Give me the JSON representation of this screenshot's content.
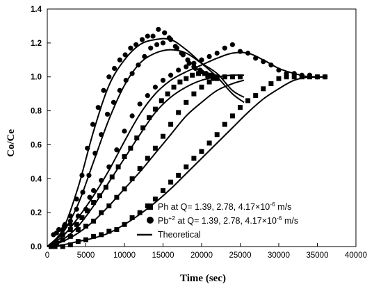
{
  "chart_data": {
    "type": "scatter",
    "xlabel": "Time (sec)",
    "ylabel": "Co/Ce",
    "xlim": [
      0,
      40000
    ],
    "ylim": [
      0,
      1.4
    ],
    "x_ticks": [
      "0",
      "5000",
      "10000",
      "15000",
      "20000",
      "25000",
      "30000",
      "35000",
      "40000"
    ],
    "y_ticks": [
      "0.0",
      "0.2",
      "0.4",
      "0.6",
      "0.8",
      "1.0",
      "1.2",
      "1.4"
    ],
    "grid": false,
    "legend_position": "bottom-right",
    "legend": [
      {
        "marker": "square",
        "base": "Ph at Q= 1.39, 2.78, 4.17×10",
        "sup": "-6",
        "tail": " m/s"
      },
      {
        "marker": "circle",
        "base": "Pb",
        "sup1": "+2",
        "mid": " at Q= 1.39, 2.78, 4.17×10",
        "sup": "-6",
        "tail": " m/s"
      },
      {
        "marker": "line",
        "text": "Theoretical"
      }
    ],
    "series": [
      {
        "marker": "circle",
        "points": [
          [
            800,
            0.07
          ],
          [
            1500,
            0.1
          ],
          [
            2300,
            0.13
          ],
          [
            3000,
            0.18
          ],
          [
            3800,
            0.28
          ],
          [
            4500,
            0.42
          ],
          [
            5200,
            0.58
          ],
          [
            5900,
            0.72
          ],
          [
            6600,
            0.82
          ],
          [
            7300,
            0.92
          ],
          [
            8000,
            1.0
          ],
          [
            8700,
            1.05
          ],
          [
            9400,
            1.1
          ],
          [
            10100,
            1.13
          ],
          [
            10800,
            1.17
          ],
          [
            11500,
            1.19
          ],
          [
            12300,
            1.22
          ],
          [
            13000,
            1.24
          ],
          [
            13700,
            1.24
          ],
          [
            14400,
            1.28
          ],
          [
            15200,
            1.26
          ],
          [
            16000,
            1.22
          ],
          [
            16800,
            1.17
          ],
          [
            17600,
            1.13
          ],
          [
            18400,
            1.08
          ],
          [
            19200,
            1.05
          ],
          [
            20000,
            1.03
          ],
          [
            20800,
            1.0
          ],
          [
            21500,
            0.99
          ]
        ]
      },
      {
        "marker": "circle",
        "points": [
          [
            1500,
            0.1
          ],
          [
            2200,
            0.12
          ],
          [
            3000,
            0.15
          ],
          [
            3800,
            0.22
          ],
          [
            4600,
            0.32
          ],
          [
            5400,
            0.42
          ],
          [
            6200,
            0.55
          ],
          [
            7000,
            0.66
          ],
          [
            7800,
            0.78
          ],
          [
            8600,
            0.85
          ],
          [
            9400,
            0.92
          ],
          [
            10200,
            0.98
          ],
          [
            11000,
            1.02
          ],
          [
            11800,
            1.07
          ],
          [
            12600,
            1.12
          ],
          [
            13400,
            1.17
          ],
          [
            14200,
            1.19
          ],
          [
            15000,
            1.2
          ],
          [
            15800,
            1.23
          ],
          [
            16600,
            1.18
          ],
          [
            17400,
            1.14
          ],
          [
            18200,
            1.1
          ],
          [
            19000,
            1.06
          ],
          [
            19800,
            1.04
          ],
          [
            20600,
            1.02
          ],
          [
            21400,
            1.01
          ]
        ]
      },
      {
        "marker": "circle",
        "points": [
          [
            1200,
            0.08
          ],
          [
            2000,
            0.1
          ],
          [
            3000,
            0.13
          ],
          [
            4000,
            0.18
          ],
          [
            5000,
            0.22
          ],
          [
            5500,
            0.29
          ],
          [
            6000,
            0.33
          ],
          [
            7000,
            0.39
          ],
          [
            8000,
            0.47
          ],
          [
            9000,
            0.57
          ],
          [
            10000,
            0.68
          ],
          [
            11000,
            0.77
          ],
          [
            12000,
            0.84
          ],
          [
            13000,
            0.89
          ],
          [
            14000,
            0.94
          ],
          [
            15000,
            0.98
          ],
          [
            16000,
            1.01
          ],
          [
            17000,
            1.04
          ],
          [
            18000,
            1.06
          ],
          [
            19000,
            1.08
          ],
          [
            20000,
            1.1
          ],
          [
            21000,
            1.12
          ],
          [
            22000,
            1.14
          ],
          [
            23000,
            1.17
          ],
          [
            24000,
            1.19
          ],
          [
            25000,
            1.15
          ],
          [
            26000,
            1.14
          ],
          [
            27000,
            1.11
          ],
          [
            28000,
            1.09
          ],
          [
            29000,
            1.07
          ],
          [
            30000,
            1.04
          ],
          [
            31000,
            1.02
          ],
          [
            32000,
            1.02
          ],
          [
            33000,
            1.01
          ],
          [
            34000,
            1.01
          ],
          [
            35000,
            1.0
          ],
          [
            36000,
            1.0
          ]
        ]
      },
      {
        "marker": "square",
        "points": [
          [
            500,
            0.0
          ],
          [
            1200,
            0.02
          ],
          [
            2000,
            0.07
          ],
          [
            3000,
            0.1
          ],
          [
            3800,
            0.13
          ],
          [
            4500,
            0.17
          ],
          [
            5200,
            0.21
          ],
          [
            6000,
            0.26
          ],
          [
            6800,
            0.3
          ],
          [
            7600,
            0.35
          ],
          [
            8400,
            0.41
          ],
          [
            9200,
            0.47
          ],
          [
            10000,
            0.53
          ],
          [
            10800,
            0.58
          ],
          [
            11600,
            0.64
          ],
          [
            12400,
            0.7
          ],
          [
            13200,
            0.76
          ],
          [
            14000,
            0.81
          ],
          [
            14800,
            0.86
          ],
          [
            15600,
            0.9
          ],
          [
            16400,
            0.94
          ],
          [
            17200,
            0.97
          ],
          [
            18000,
            0.99
          ],
          [
            18800,
            1.01
          ],
          [
            19600,
            1.02
          ],
          [
            20400,
            1.02
          ],
          [
            21200,
            1.01
          ],
          [
            22000,
            1.0
          ]
        ]
      },
      {
        "marker": "square",
        "points": [
          [
            1000,
            0.01
          ],
          [
            2000,
            0.04
          ],
          [
            3000,
            0.06
          ],
          [
            4000,
            0.1
          ],
          [
            5000,
            0.12
          ],
          [
            6000,
            0.15
          ],
          [
            7000,
            0.2
          ],
          [
            8000,
            0.24
          ],
          [
            9000,
            0.29
          ],
          [
            10000,
            0.34
          ],
          [
            11000,
            0.4
          ],
          [
            12000,
            0.46
          ],
          [
            13000,
            0.52
          ],
          [
            14000,
            0.58
          ],
          [
            15000,
            0.65
          ],
          [
            16000,
            0.72
          ],
          [
            17000,
            0.79
          ],
          [
            18000,
            0.85
          ],
          [
            19000,
            0.9
          ],
          [
            20000,
            0.94
          ],
          [
            21000,
            0.97
          ],
          [
            22000,
            0.99
          ],
          [
            23000,
            1.0
          ],
          [
            24000,
            1.0
          ],
          [
            25000,
            1.0
          ]
        ]
      },
      {
        "marker": "square",
        "points": [
          [
            1000,
            0.0
          ],
          [
            2000,
            0.0
          ],
          [
            3000,
            0.01
          ],
          [
            4000,
            0.03
          ],
          [
            5000,
            0.04
          ],
          [
            6000,
            0.06
          ],
          [
            7000,
            0.07
          ],
          [
            8000,
            0.09
          ],
          [
            9000,
            0.1
          ],
          [
            10000,
            0.13
          ],
          [
            11000,
            0.17
          ],
          [
            12000,
            0.2
          ],
          [
            13000,
            0.24
          ],
          [
            14000,
            0.28
          ],
          [
            15000,
            0.33
          ],
          [
            16000,
            0.38
          ],
          [
            17000,
            0.42
          ],
          [
            18000,
            0.47
          ],
          [
            19000,
            0.52
          ],
          [
            20000,
            0.56
          ],
          [
            21000,
            0.61
          ],
          [
            22000,
            0.66
          ],
          [
            23000,
            0.72
          ],
          [
            24000,
            0.77
          ],
          [
            25000,
            0.82
          ],
          [
            26000,
            0.86
          ],
          [
            27000,
            0.89
          ],
          [
            28000,
            0.93
          ],
          [
            29000,
            0.96
          ],
          [
            30000,
            0.99
          ],
          [
            31000,
            1.0
          ],
          [
            32000,
            1.0
          ],
          [
            33000,
            1.0
          ],
          [
            34000,
            1.0
          ],
          [
            35000,
            1.0
          ],
          [
            36000,
            1.0
          ]
        ]
      }
    ],
    "theoretical_curves": [
      [
        [
          0,
          0.0
        ],
        [
          2000,
          0.1
        ],
        [
          4000,
          0.35
        ],
        [
          6000,
          0.68
        ],
        [
          8000,
          0.95
        ],
        [
          10000,
          1.1
        ],
        [
          12000,
          1.19
        ],
        [
          14000,
          1.22
        ],
        [
          16000,
          1.22
        ],
        [
          18000,
          1.16
        ],
        [
          20000,
          1.08
        ],
        [
          22000,
          1.0
        ],
        [
          24000,
          0.9
        ],
        [
          25500,
          0.85
        ]
      ],
      [
        [
          0,
          0.0
        ],
        [
          2000,
          0.08
        ],
        [
          4000,
          0.25
        ],
        [
          6000,
          0.5
        ],
        [
          8000,
          0.75
        ],
        [
          10000,
          0.95
        ],
        [
          12000,
          1.08
        ],
        [
          14000,
          1.14
        ],
        [
          16000,
          1.16
        ],
        [
          18000,
          1.14
        ],
        [
          20000,
          1.08
        ],
        [
          22000,
          1.02
        ],
        [
          24000,
          0.92
        ],
        [
          25500,
          0.88
        ]
      ],
      [
        [
          0,
          0.0
        ],
        [
          2000,
          0.06
        ],
        [
          4000,
          0.17
        ],
        [
          6000,
          0.3
        ],
        [
          8000,
          0.45
        ],
        [
          10000,
          0.62
        ],
        [
          12000,
          0.78
        ],
        [
          14000,
          0.9
        ],
        [
          16000,
          0.98
        ],
        [
          18000,
          1.03
        ],
        [
          20000,
          1.07
        ],
        [
          22000,
          1.11
        ],
        [
          24000,
          1.14
        ],
        [
          26000,
          1.14
        ],
        [
          28000,
          1.1
        ],
        [
          30000,
          1.05
        ],
        [
          32000,
          1.02
        ],
        [
          34000,
          1.0
        ],
        [
          36000,
          1.0
        ]
      ],
      [
        [
          0,
          0.0
        ],
        [
          2000,
          0.04
        ],
        [
          4000,
          0.12
        ],
        [
          6000,
          0.24
        ],
        [
          8000,
          0.38
        ],
        [
          10000,
          0.52
        ],
        [
          12000,
          0.66
        ],
        [
          14000,
          0.79
        ],
        [
          16000,
          0.88
        ],
        [
          18000,
          0.94
        ],
        [
          20000,
          0.98
        ],
        [
          22000,
          1.0
        ],
        [
          24000,
          1.01
        ],
        [
          25500,
          1.01
        ]
      ],
      [
        [
          0,
          0.0
        ],
        [
          2000,
          0.03
        ],
        [
          4000,
          0.08
        ],
        [
          6000,
          0.15
        ],
        [
          8000,
          0.24
        ],
        [
          10000,
          0.34
        ],
        [
          12000,
          0.44
        ],
        [
          14000,
          0.55
        ],
        [
          16000,
          0.66
        ],
        [
          18000,
          0.77
        ],
        [
          20000,
          0.85
        ],
        [
          22000,
          0.92
        ],
        [
          24000,
          0.96
        ],
        [
          25500,
          0.98
        ]
      ],
      [
        [
          0,
          0.0
        ],
        [
          2000,
          0.01
        ],
        [
          4000,
          0.03
        ],
        [
          6000,
          0.05
        ],
        [
          8000,
          0.08
        ],
        [
          10000,
          0.13
        ],
        [
          12000,
          0.19
        ],
        [
          14000,
          0.26
        ],
        [
          16000,
          0.34
        ],
        [
          18000,
          0.43
        ],
        [
          20000,
          0.52
        ],
        [
          22000,
          0.61
        ],
        [
          24000,
          0.7
        ],
        [
          26000,
          0.79
        ],
        [
          28000,
          0.87
        ],
        [
          30000,
          0.93
        ],
        [
          32000,
          0.98
        ],
        [
          34000,
          1.0
        ],
        [
          36000,
          1.0
        ]
      ]
    ]
  }
}
